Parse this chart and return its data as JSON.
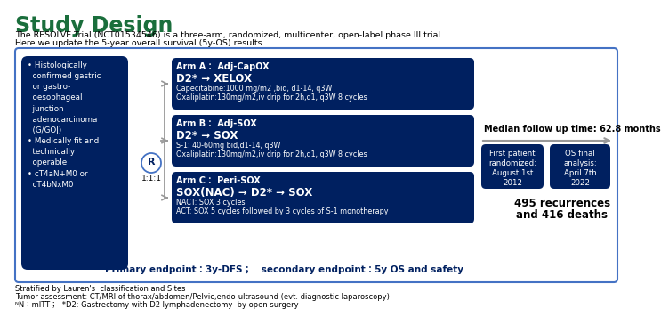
{
  "title": "Study Design",
  "title_color": "#1a6e3c",
  "intro_line1": "The RESOLVE Trial (NCT01534546) is a three-arm, randomized, multicenter, open-label phase III trial.",
  "intro_line2": "Here we update the 5-year overall survival (5y-OS) results.",
  "left_box_lines": "• Histologically\n  confirmed gastric\n  or gastro-\n  oesophageal\n  junction\n  adenocarcinoma\n  (G/GOJ)\n• Medically fit and\n  technically\n  operable\n• cT4aN+M0 or\n  cT4bNxM0",
  "arm_a_title": "Arm A： Adj-CapOX",
  "arm_a_line1": "D2* → XELOX",
  "arm_a_line2": "Capecitabine:1000 mg/m2 ,bid, d1-14, q3W",
  "arm_a_line3": "Oxaliplatin:130mg/m2,iv drip for 2h,d1, q3W 8 cycles",
  "arm_b_title": "Arm B： Adj-SOX",
  "arm_b_line1": "D2* → SOX",
  "arm_b_line2": "S-1: 40-60mg bid,d1-14, q3W",
  "arm_b_line3": "Oxaliplatin:130mg/m2,iv drip for 2h,d1, q3W 8 cycles",
  "arm_c_title": "Arm C： Peri-SOX",
  "arm_c_line1": "SOX(NAC) → D2* → SOX",
  "arm_c_line2": "NACT: SOX 3 cycles",
  "arm_c_line3": "ACT: SOX 5 cycles followed by 3 cycles of S-1 monotherapy",
  "primary_endpoint": "Primary endpoint：3y-DFS；   secondary endpoint：5y OS and safety",
  "median_follow": "Median follow up time: 62.8 months",
  "date1_line1": "First patient",
  "date1_line2": "randomized:",
  "date1_line3": "August 1st",
  "date1_line4": "2012",
  "date2_line1": "OS final",
  "date2_line2": "analysis:",
  "date2_line3": "April 7th",
  "date2_line4": "2022",
  "recurrences_line1": "495 recurrences",
  "recurrences_line2": "and 416 deaths",
  "footnote1": "Stratified by Lauren's  classification and Sites",
  "footnote2": "Tumor assessment: CT/MRI of thorax/abdomen/Pelvic,endo-ultrasound (evt. diagnostic laparoscopy)",
  "footnote3": "ᴺN：mITT；  *D2: Gastrectomy with D2 lymphadenectomy  by open surgery",
  "navy": "#002060",
  "box_border": "#4472c4",
  "bg_color": "#ffffff",
  "outer_border": "#4472c4",
  "gray_line": "#999999"
}
